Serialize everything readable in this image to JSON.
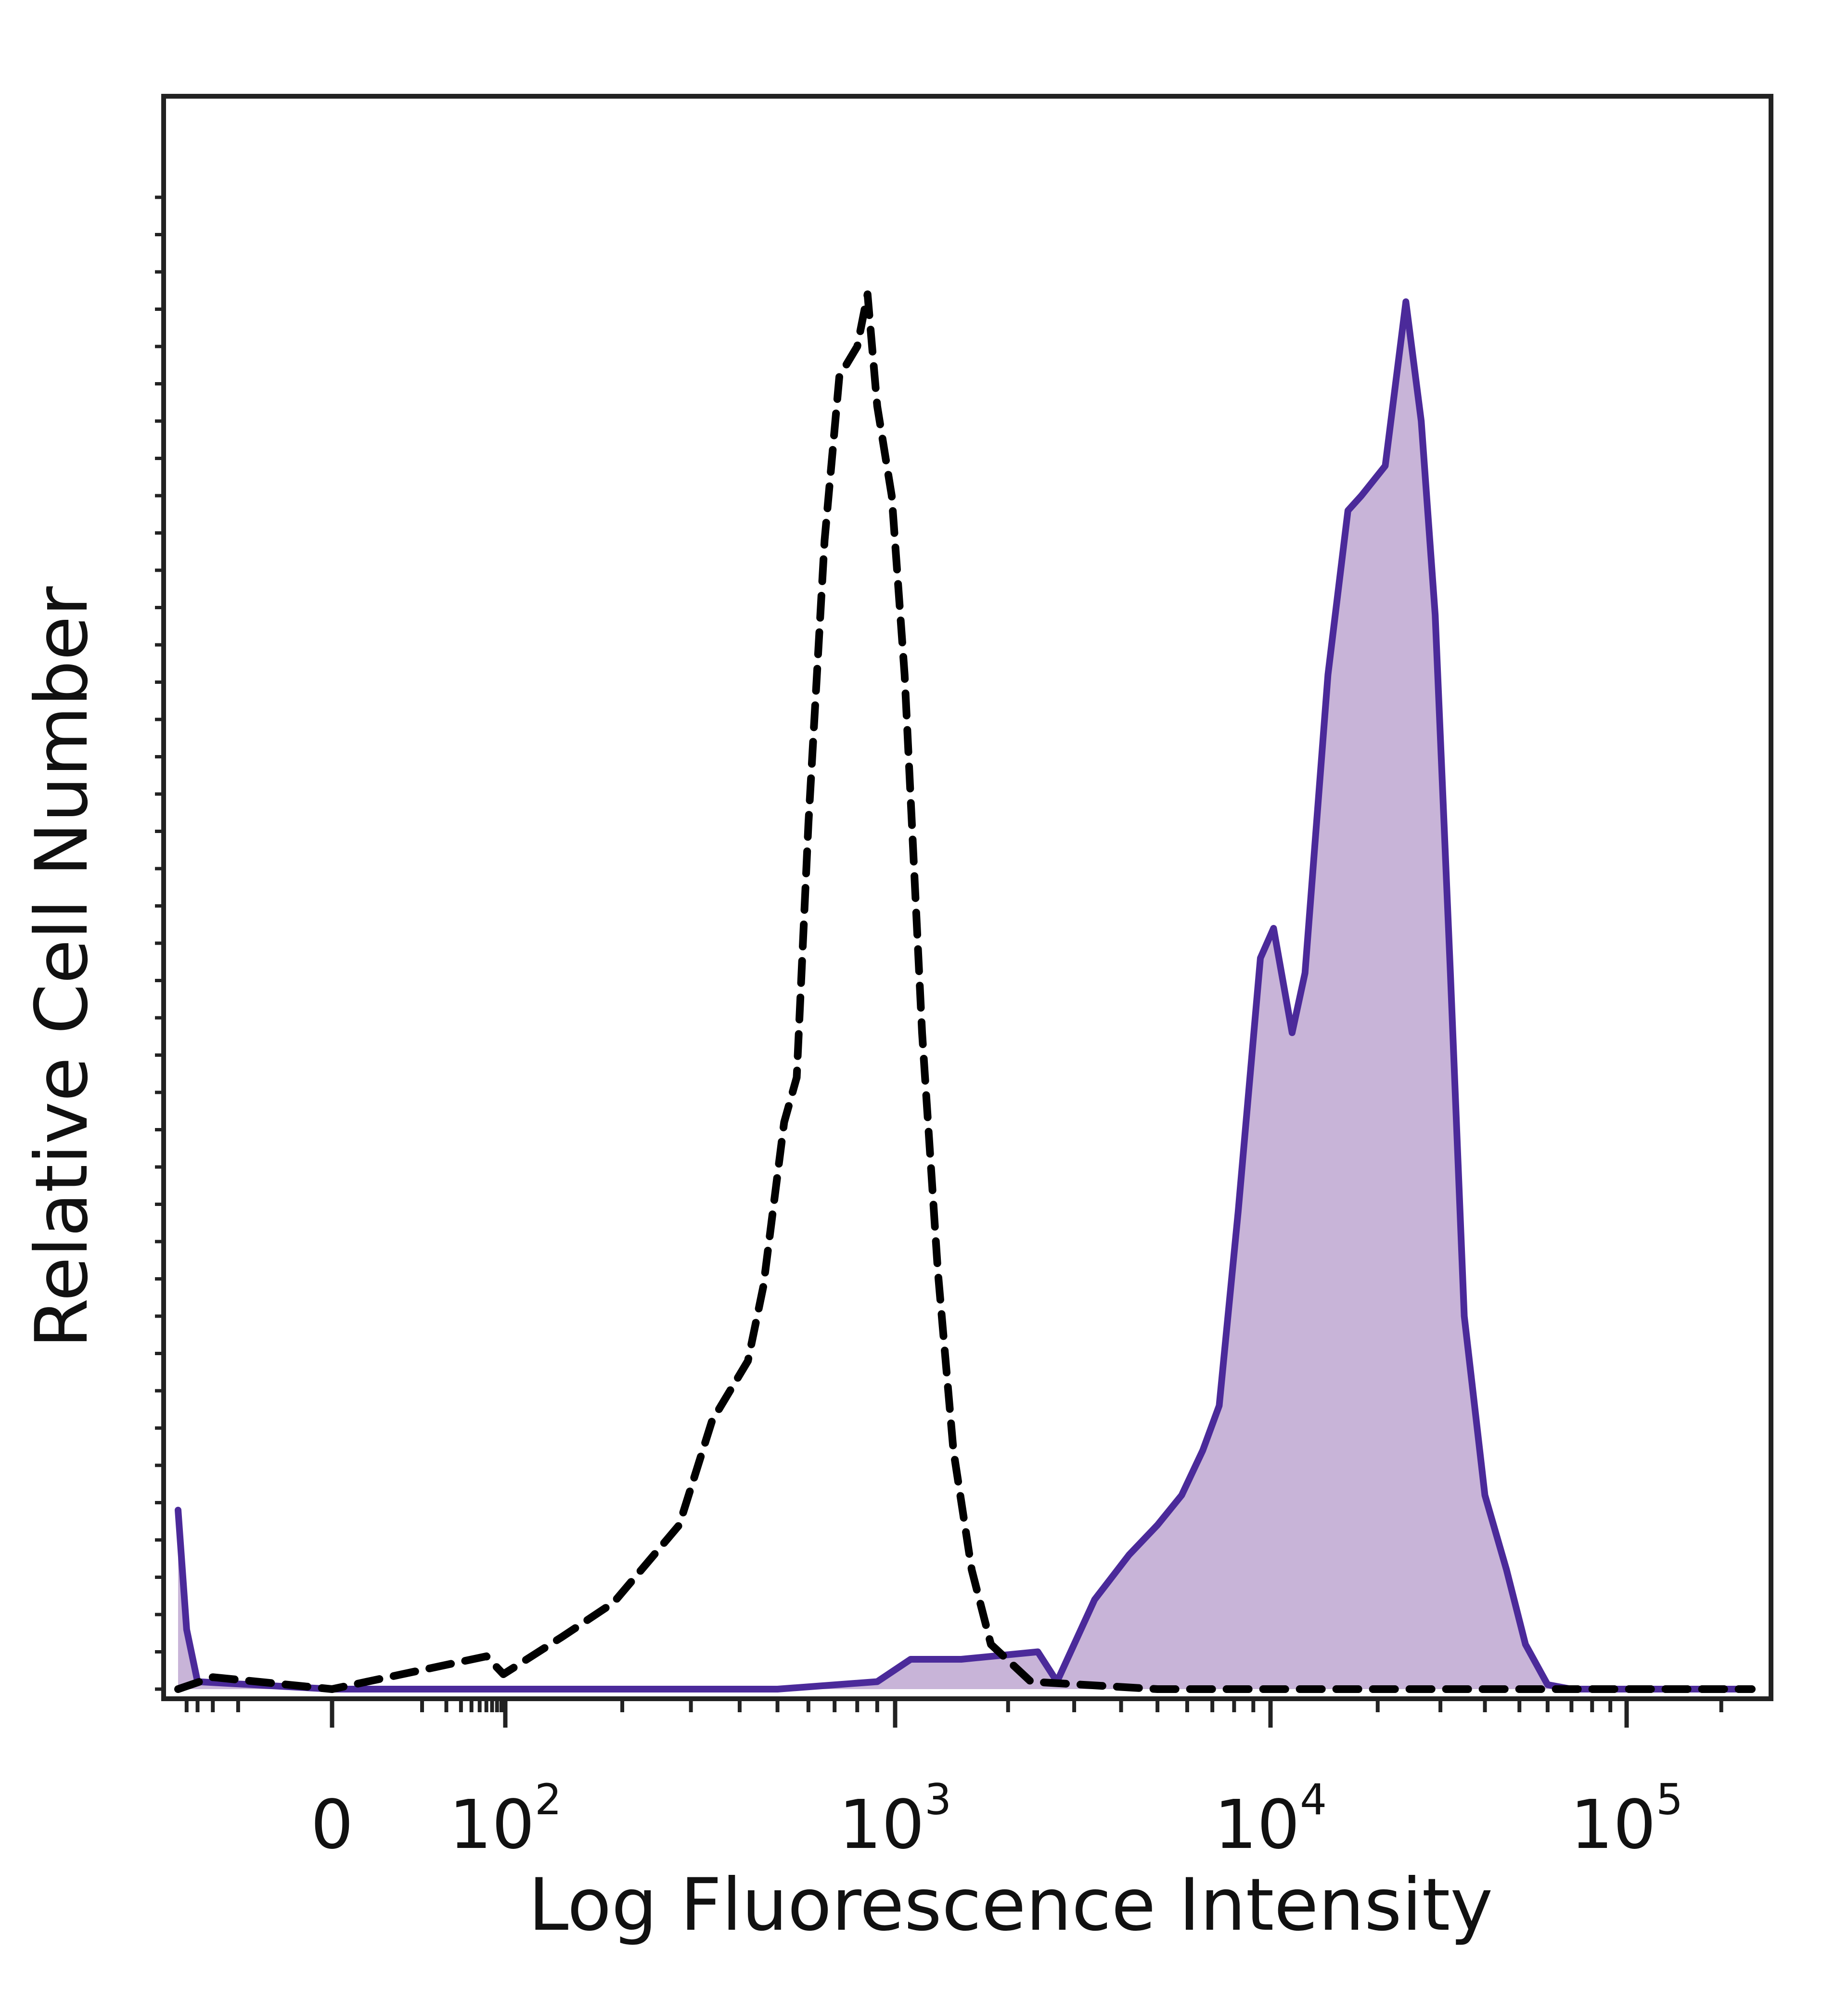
{
  "chart_data": {
    "type": "area",
    "xlabel": "Log Fluorescence Intensity",
    "ylabel": "Relative Cell Number",
    "x_scale": "biexponential",
    "xlim": [
      -50,
      250000
    ],
    "ylim": [
      0,
      100
    ],
    "y_ticks_labeled": false,
    "grid": false,
    "legend": "none",
    "x_tick_labels": [
      {
        "value": 0,
        "base": "0",
        "exp": ""
      },
      {
        "value": 100,
        "base": "10",
        "exp": "2"
      },
      {
        "value": 1000,
        "base": "10",
        "exp": "3"
      },
      {
        "value": 10000,
        "base": "10",
        "exp": "4"
      },
      {
        "value": 100000,
        "base": "10",
        "exp": "5"
      }
    ],
    "series": [
      {
        "style": "dashed",
        "color": "#000000",
        "fill": "none",
        "points": [
          [
            -50,
            0
          ],
          [
            -20,
            0.8
          ],
          [
            0,
            0
          ],
          [
            60,
            2.2
          ],
          [
            95,
            1.0
          ],
          [
            140,
            3.5
          ],
          [
            190,
            5.8
          ],
          [
            280,
            11
          ],
          [
            340,
            18
          ],
          [
            420,
            22
          ],
          [
            460,
            27
          ],
          [
            520,
            38
          ],
          [
            560,
            41
          ],
          [
            600,
            58
          ],
          [
            660,
            77
          ],
          [
            720,
            88
          ],
          [
            800,
            90
          ],
          [
            850,
            93.5
          ],
          [
            900,
            86
          ],
          [
            980,
            80
          ],
          [
            1060,
            68
          ],
          [
            1180,
            44
          ],
          [
            1300,
            28
          ],
          [
            1430,
            16
          ],
          [
            1600,
            8
          ],
          [
            1800,
            3
          ],
          [
            2300,
            0.5
          ],
          [
            5000,
            0
          ],
          [
            250000,
            0
          ]
        ]
      },
      {
        "style": "solid",
        "color": "#4b2a9a",
        "fill": "#c8b4d8",
        "points": [
          [
            -50,
            12
          ],
          [
            -40,
            4
          ],
          [
            -30,
            0.5
          ],
          [
            0,
            0
          ],
          [
            500,
            0
          ],
          [
            900,
            0.5
          ],
          [
            1100,
            2
          ],
          [
            1500,
            2
          ],
          [
            2400,
            2.5
          ],
          [
            2700,
            0.5
          ],
          [
            3400,
            6
          ],
          [
            4200,
            9
          ],
          [
            5000,
            11
          ],
          [
            5800,
            13
          ],
          [
            6600,
            16
          ],
          [
            7300,
            19
          ],
          [
            8200,
            32
          ],
          [
            9400,
            49
          ],
          [
            10200,
            51
          ],
          [
            11500,
            44
          ],
          [
            12500,
            48
          ],
          [
            14500,
            68
          ],
          [
            16500,
            79
          ],
          [
            18000,
            80
          ],
          [
            21000,
            82
          ],
          [
            24000,
            93
          ],
          [
            26500,
            85
          ],
          [
            29000,
            72
          ],
          [
            32000,
            48
          ],
          [
            35000,
            25
          ],
          [
            40000,
            13
          ],
          [
            46000,
            8
          ],
          [
            52000,
            3
          ],
          [
            60000,
            0.3
          ],
          [
            70000,
            0
          ],
          [
            250000,
            0
          ]
        ]
      }
    ]
  }
}
